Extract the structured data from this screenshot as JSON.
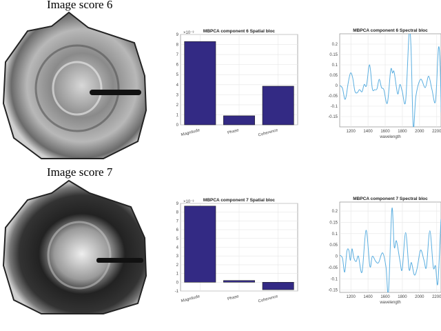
{
  "rows": [
    {
      "image_title": "Image score 6"
    },
    {
      "image_title": "Image score 7"
    }
  ],
  "chart_data": [
    {
      "type": "bar",
      "title": "MBPCA component 6 Spatial bloc",
      "categories": [
        "Magnitude",
        "Phase",
        "Coherence"
      ],
      "values": [
        8.3,
        0.9,
        3.85
      ],
      "ylim": [
        0,
        9
      ],
      "yticks": [
        "0",
        "1",
        "2",
        "3",
        "4",
        "5",
        "6",
        "7",
        "8",
        "9"
      ],
      "exponent": "×10⁻³",
      "grid": true,
      "color": "#332a84"
    },
    {
      "type": "line",
      "title": "MBPCA component 6 Spectral bloc",
      "xlabel": "wavelength",
      "xlim": [
        1070,
        2250
      ],
      "ylim": [
        -0.2,
        0.25
      ],
      "xticks": [
        "1200",
        "1400",
        "1600",
        "1800",
        "2000",
        "2200"
      ],
      "yticks": [
        "-0.15",
        "-0.1",
        "-0.05",
        "0",
        "0.05",
        "0.1",
        "0.15",
        "0.2"
      ],
      "grid": true,
      "color": "#5aaee0",
      "x": [
        1070,
        1102,
        1128,
        1146,
        1168,
        1195,
        1220,
        1247,
        1274,
        1300,
        1330,
        1355,
        1382,
        1418,
        1450,
        1477,
        1504,
        1530,
        1557,
        1584,
        1625,
        1664,
        1685,
        1704,
        1745,
        1771,
        1798,
        1838,
        1878,
        1900,
        1927,
        1958,
        2012,
        2066,
        2106,
        2145,
        2186,
        2220,
        2240,
        2252
      ],
      "y": [
        0,
        -0.013,
        -0.065,
        -0.05,
        0.01,
        0.06,
        0.04,
        -0.027,
        -0.035,
        -0.02,
        -0.03,
        0.005,
        0,
        0.1,
        -0.015,
        -0.02,
        -0.016,
        0.03,
        -0.01,
        -0.02,
        -0.085,
        0.075,
        0.06,
        0.065,
        -0.04,
        0.005,
        -0.027,
        -0.075,
        0.25,
        0.19,
        -0.2,
        -0.05,
        0.03,
        -0.01,
        0.045,
        -0.02,
        -0.075,
        0.18,
        0.1,
        -0.13
      ]
    },
    {
      "type": "bar",
      "title": "MBPCA component 7 Spatial bloc",
      "categories": [
        "Magnitude",
        "Phase",
        "Coherence"
      ],
      "values": [
        8.7,
        0.2,
        -0.85
      ],
      "ylim": [
        -1,
        9
      ],
      "yticks": [
        "-1",
        "0",
        "1",
        "2",
        "3",
        "4",
        "5",
        "6",
        "7",
        "8",
        "9"
      ],
      "exponent": "×10⁻³",
      "grid": true,
      "color": "#332a84"
    },
    {
      "type": "line",
      "title": "MBPCA component 7 Spectral bloc",
      "xlabel": "wavelength",
      "xlim": [
        1070,
        2250
      ],
      "ylim": [
        -0.16,
        0.24
      ],
      "xticks": [
        "1200",
        "1400",
        "1600",
        "1800",
        "2000",
        "2200"
      ],
      "yticks": [
        "-0.15",
        "-0.1",
        "-0.05",
        "0",
        "0.05",
        "0.1",
        "0.15",
        "0.2"
      ],
      "grid": true,
      "color": "#5aaee0",
      "x": [
        1070,
        1102,
        1128,
        1154,
        1176,
        1195,
        1213,
        1235,
        1262,
        1288,
        1330,
        1377,
        1422,
        1450,
        1490,
        1523,
        1570,
        1610,
        1638,
        1678,
        1705,
        1731,
        1771,
        1798,
        1838,
        1878,
        1905,
        1940,
        1972,
        2012,
        2052,
        2080,
        2120,
        2160,
        2186,
        2213,
        2250
      ],
      "y": [
        0.004,
        -0.008,
        -0.07,
        0.022,
        0.027,
        -0.018,
        0.033,
        -0.008,
        -0.023,
        0,
        -0.07,
        0.115,
        -0.045,
        0,
        -0.023,
        -0.028,
        0.015,
        -0.05,
        -0.16,
        0.21,
        0.042,
        0.068,
        -0.018,
        -0.058,
        0.105,
        -0.058,
        -0.028,
        -0.083,
        -0.053,
        0.027,
        -0.018,
        -0.048,
        0.113,
        -0.048,
        -0.043,
        -0.12,
        0.165
      ]
    }
  ]
}
